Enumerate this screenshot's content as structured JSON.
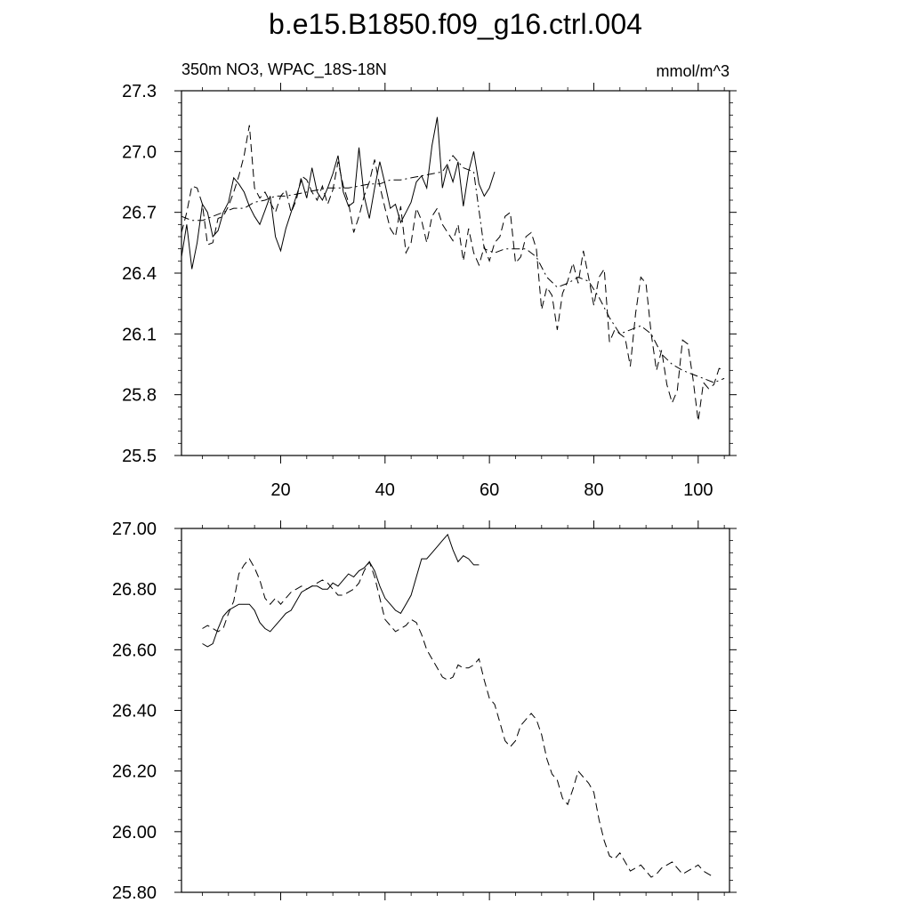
{
  "figure": {
    "title": "b.e15.B1850.f09_g16.ctrl.004",
    "left_label": "350m NO3, WPAC_18S-18N",
    "right_label": "mmol/m^3"
  },
  "chart_data": [
    {
      "type": "line",
      "xlim": [
        1,
        106
      ],
      "ylim": [
        25.5,
        27.3
      ],
      "xticks": [
        20,
        40,
        60,
        80,
        100
      ],
      "yticks": [
        25.5,
        25.8,
        26.1,
        26.4,
        26.7,
        27.0,
        27.3
      ],
      "ytick_labels": [
        "25.5",
        "25.8",
        "26.1",
        "26.4",
        "26.7",
        "27.0",
        "27.3"
      ],
      "grid": false,
      "legend": "none",
      "series": [
        {
          "style": "solid",
          "x": [
            1,
            2,
            3,
            4,
            5,
            6,
            7,
            8,
            9,
            10,
            11,
            12,
            13,
            14,
            15,
            16,
            17,
            18,
            19,
            20,
            21,
            22,
            23,
            24,
            25,
            26,
            27,
            28,
            29,
            30,
            31,
            32,
            33,
            34,
            35,
            36,
            37,
            38,
            39,
            40,
            41,
            42,
            43,
            44,
            45,
            46,
            47,
            48,
            49,
            50,
            51,
            52,
            53,
            54,
            55,
            56,
            57,
            58,
            59,
            60,
            61
          ],
          "y": [
            26.48,
            26.64,
            26.42,
            26.55,
            26.74,
            26.7,
            26.58,
            26.61,
            26.7,
            26.75,
            26.87,
            26.84,
            26.8,
            26.73,
            26.68,
            26.64,
            26.71,
            26.78,
            26.58,
            26.51,
            26.62,
            26.7,
            26.78,
            26.86,
            26.77,
            26.92,
            26.8,
            26.76,
            26.82,
            26.89,
            26.98,
            26.8,
            26.73,
            26.75,
            27.02,
            26.78,
            26.67,
            26.82,
            26.95,
            26.84,
            26.72,
            26.74,
            26.65,
            26.7,
            26.75,
            26.85,
            26.88,
            26.82,
            27.03,
            27.17,
            26.82,
            26.93,
            26.85,
            26.95,
            26.73,
            26.9,
            27.0,
            26.84,
            26.78,
            26.82,
            26.9
          ]
        },
        {
          "style": "dashed",
          "x": [
            1,
            2,
            3,
            4,
            5,
            6,
            7,
            8,
            9,
            10,
            11,
            12,
            13,
            14,
            15,
            16,
            17,
            18,
            19,
            20,
            21,
            22,
            23,
            24,
            25,
            26,
            27,
            28,
            29,
            30,
            31,
            32,
            33,
            34,
            35,
            36,
            37,
            38,
            39,
            40,
            41,
            42,
            43,
            44,
            45,
            46,
            47,
            48,
            49,
            50,
            51,
            52,
            53,
            54,
            55,
            56,
            57,
            58,
            59,
            60,
            61,
            62,
            63,
            64,
            65,
            66,
            67,
            68,
            69,
            70,
            71,
            72,
            73,
            74,
            75,
            76,
            77,
            78,
            79,
            80,
            81,
            82,
            83,
            84,
            85,
            86,
            87,
            88,
            89,
            90,
            91,
            92,
            93,
            94,
            95,
            96,
            97,
            98,
            99,
            100,
            101,
            102,
            103,
            104,
            105
          ],
          "y": [
            26.6,
            26.7,
            26.83,
            26.82,
            26.74,
            26.54,
            26.55,
            26.67,
            26.68,
            26.73,
            26.8,
            26.88,
            26.98,
            27.13,
            26.82,
            26.77,
            26.8,
            26.75,
            26.7,
            26.78,
            26.81,
            26.7,
            26.76,
            26.88,
            26.86,
            26.8,
            26.76,
            26.83,
            26.74,
            26.81,
            26.95,
            26.83,
            26.75,
            26.6,
            26.68,
            26.78,
            26.85,
            26.96,
            26.83,
            26.72,
            26.62,
            26.58,
            26.73,
            26.5,
            26.55,
            26.72,
            26.66,
            26.55,
            26.68,
            26.72,
            26.64,
            26.6,
            26.56,
            26.64,
            26.46,
            26.62,
            26.5,
            26.44,
            26.53,
            26.46,
            26.55,
            26.58,
            26.68,
            26.7,
            26.45,
            26.48,
            26.58,
            26.6,
            26.52,
            26.22,
            26.33,
            26.29,
            26.12,
            26.3,
            26.36,
            26.45,
            26.35,
            26.51,
            26.38,
            26.24,
            26.38,
            26.42,
            26.06,
            26.12,
            26.1,
            26.08,
            25.94,
            26.2,
            26.38,
            26.35,
            26.1,
            25.92,
            26.02,
            25.85,
            25.76,
            25.82,
            26.07,
            26.05,
            25.88,
            25.67,
            25.86,
            25.83,
            25.85,
            25.93,
            25.92
          ]
        },
        {
          "style": "dashdot",
          "x": [
            1,
            3,
            5,
            7,
            9,
            11,
            13,
            15,
            17,
            19,
            21,
            23,
            25,
            27,
            29,
            31,
            33,
            35,
            37,
            39,
            41,
            43,
            45,
            47,
            49,
            51,
            53,
            55,
            57,
            59,
            61,
            63,
            65,
            67,
            69,
            71,
            73,
            75,
            77,
            79,
            81,
            83,
            85,
            87,
            89,
            91,
            93,
            95,
            97,
            99,
            101,
            103,
            105
          ],
          "y": [
            26.68,
            26.66,
            26.66,
            26.68,
            26.7,
            26.72,
            26.72,
            26.75,
            26.76,
            26.78,
            26.78,
            26.79,
            26.8,
            26.81,
            26.82,
            26.82,
            26.82,
            26.83,
            26.84,
            26.84,
            26.86,
            26.86,
            26.87,
            26.88,
            26.89,
            26.9,
            26.98,
            26.92,
            26.9,
            26.52,
            26.5,
            26.52,
            26.52,
            26.52,
            26.48,
            26.38,
            26.33,
            26.35,
            26.38,
            26.36,
            26.28,
            26.18,
            26.1,
            26.12,
            26.14,
            26.1,
            26.0,
            25.95,
            25.92,
            25.9,
            25.88,
            25.86,
            25.88
          ]
        }
      ]
    },
    {
      "type": "line",
      "xlim": [
        1,
        106
      ],
      "ylim": [
        25.8,
        27.0
      ],
      "xticks": [
        20,
        40,
        60,
        80,
        100
      ],
      "yticks": [
        25.8,
        26.0,
        26.2,
        26.4,
        26.6,
        26.8,
        27.0
      ],
      "ytick_labels": [
        "25.80",
        "26.00",
        "26.20",
        "26.40",
        "26.60",
        "26.80",
        "27.00"
      ],
      "grid": false,
      "legend": "none",
      "series": [
        {
          "style": "solid",
          "x": [
            5,
            6,
            7,
            8,
            9,
            10,
            11,
            12,
            13,
            14,
            15,
            16,
            17,
            18,
            19,
            20,
            21,
            22,
            23,
            24,
            25,
            26,
            27,
            28,
            29,
            30,
            31,
            32,
            33,
            34,
            35,
            36,
            37,
            38,
            39,
            40,
            41,
            42,
            43,
            44,
            45,
            46,
            47,
            48,
            49,
            50,
            51,
            52,
            53,
            54,
            55,
            56,
            57,
            58
          ],
          "y": [
            26.62,
            26.61,
            26.62,
            26.67,
            26.71,
            26.73,
            26.74,
            26.75,
            26.75,
            26.75,
            26.73,
            26.69,
            26.67,
            26.66,
            26.68,
            26.7,
            26.72,
            26.73,
            26.76,
            26.79,
            26.8,
            26.81,
            26.81,
            26.8,
            26.8,
            26.82,
            26.81,
            26.83,
            26.85,
            26.84,
            26.86,
            26.87,
            26.89,
            26.86,
            26.81,
            26.77,
            26.75,
            26.73,
            26.72,
            26.75,
            26.78,
            26.84,
            26.9,
            26.9,
            26.92,
            26.94,
            26.96,
            26.98,
            26.93,
            26.89,
            26.91,
            26.9,
            26.88,
            26.88
          ]
        },
        {
          "style": "dashed",
          "x": [
            5,
            6,
            7,
            8,
            9,
            10,
            11,
            12,
            13,
            14,
            15,
            16,
            17,
            18,
            19,
            20,
            21,
            22,
            23,
            24,
            25,
            26,
            27,
            28,
            29,
            30,
            31,
            32,
            33,
            34,
            35,
            36,
            37,
            38,
            39,
            40,
            41,
            42,
            43,
            44,
            45,
            46,
            47,
            48,
            49,
            50,
            51,
            52,
            53,
            54,
            55,
            56,
            57,
            58,
            59,
            60,
            61,
            62,
            63,
            64,
            65,
            66,
            67,
            68,
            69,
            70,
            71,
            72,
            73,
            74,
            75,
            76,
            77,
            78,
            79,
            80,
            81,
            82,
            83,
            84,
            85,
            86,
            87,
            88,
            89,
            90,
            91,
            92,
            93,
            94,
            95,
            96,
            97,
            98,
            99,
            100,
            101,
            102,
            103
          ],
          "y": [
            26.67,
            26.68,
            26.67,
            26.66,
            26.67,
            26.72,
            26.76,
            26.85,
            26.88,
            26.9,
            26.87,
            26.83,
            26.77,
            26.75,
            26.77,
            26.75,
            26.77,
            26.79,
            26.8,
            26.81,
            26.8,
            26.81,
            26.82,
            26.83,
            26.82,
            26.8,
            26.78,
            26.78,
            26.79,
            26.8,
            26.82,
            26.86,
            26.89,
            26.84,
            26.77,
            26.7,
            26.68,
            26.66,
            26.67,
            26.68,
            26.7,
            26.69,
            26.65,
            26.6,
            26.57,
            26.54,
            26.51,
            26.5,
            26.51,
            26.55,
            26.54,
            26.54,
            26.55,
            26.57,
            26.5,
            26.44,
            26.42,
            26.36,
            26.3,
            26.28,
            26.3,
            26.35,
            26.37,
            26.39,
            26.37,
            26.32,
            26.24,
            26.19,
            26.17,
            26.11,
            26.09,
            26.14,
            26.2,
            26.18,
            26.16,
            26.13,
            26.04,
            25.97,
            25.92,
            25.91,
            25.93,
            25.9,
            25.87,
            25.88,
            25.89,
            25.87,
            25.85,
            25.86,
            25.88,
            25.89,
            25.9,
            25.88,
            25.86,
            25.87,
            25.88,
            25.89,
            25.87,
            25.86,
            25.85
          ]
        }
      ]
    }
  ]
}
